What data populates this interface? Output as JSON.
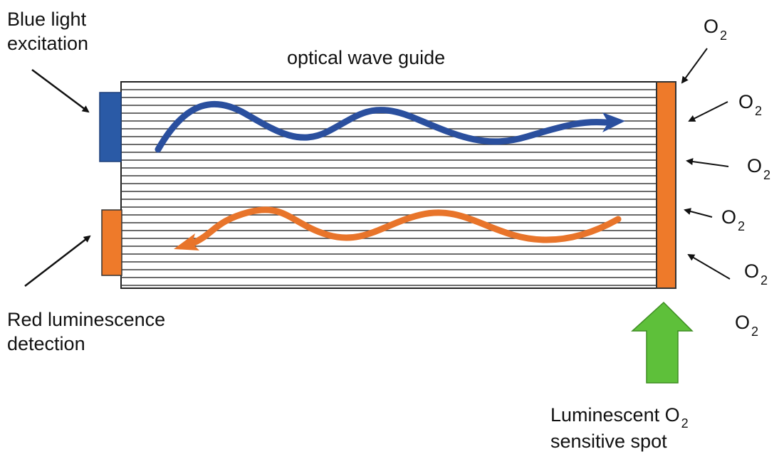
{
  "labels": {
    "blue_line1": "Blue light",
    "blue_line2": "excitation",
    "waveguide": "optical wave guide",
    "red_line1": "Red luminescence",
    "red_line2": "detection",
    "spot_line1_prefix": "Luminescent O",
    "spot_line1_sub": "2",
    "spot_line2": "sensitive spot"
  },
  "oxygen": {
    "symbol": "O",
    "subscript": "2"
  },
  "colors": {
    "excitation_blue": "#2a4f9e",
    "emission_orange": "#e8742a",
    "spot_orange": "#ee7a2a",
    "arrow_green": "#5ec03a",
    "fiber_line": "#3a3a3a"
  }
}
